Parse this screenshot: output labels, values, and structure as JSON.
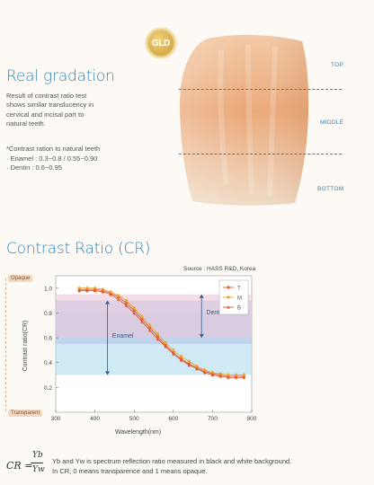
{
  "badge": {
    "label": "GLD"
  },
  "section1": {
    "title": "Real gradation",
    "description": [
      "Result of contrast ratio test",
      "shows similar translucency in",
      "cervical and incisal part to",
      "natural teeth."
    ],
    "note_heading": "*Contrast ration to natural teeth",
    "note_lines": [
      "· Enamel : 0.3~0.8 / 0.55~0.90",
      "· Dentin : 0.6~0.95"
    ],
    "levels": {
      "top": "TOP",
      "middle": "MIDDLE",
      "bottom": "BOTTOM"
    }
  },
  "section2": {
    "title": "Contrast Ratio (CR)",
    "source": "Source : HASS R&D, Korea",
    "opaque_label": "Opaque",
    "transparent_label": "Transparent",
    "dentin_label": "Dentin",
    "enamel_label": "Enamel"
  },
  "chart_data": {
    "type": "line",
    "xlabel": "Wavelength(nm)",
    "ylabel": "Contrast ratio(CR)",
    "xlim": [
      300,
      800
    ],
    "ylim": [
      0.0,
      1.1
    ],
    "x_ticks": [
      "300",
      "400",
      "500",
      "600",
      "700",
      "800"
    ],
    "y_ticks": [
      "0.2",
      "0.4",
      "0.6",
      "0.8",
      "1.0"
    ],
    "bands": [
      {
        "name": "Enamel",
        "range": [
          0.3,
          0.8
        ]
      },
      {
        "name": "Enamel",
        "range": [
          0.55,
          0.9
        ]
      },
      {
        "name": "Dentin",
        "range": [
          0.6,
          0.95
        ]
      }
    ],
    "x": [
      360,
      380,
      400,
      420,
      440,
      460,
      480,
      500,
      520,
      540,
      560,
      580,
      600,
      620,
      640,
      660,
      680,
      700,
      720,
      740,
      760,
      780
    ],
    "series": [
      {
        "name": "T",
        "color": "#d9623a",
        "values": [
          0.99,
          0.99,
          0.99,
          0.98,
          0.96,
          0.93,
          0.88,
          0.82,
          0.75,
          0.68,
          0.61,
          0.54,
          0.48,
          0.43,
          0.39,
          0.36,
          0.33,
          0.31,
          0.3,
          0.29,
          0.29,
          0.29
        ]
      },
      {
        "name": "M",
        "color": "#eba52f",
        "values": [
          1.0,
          1.0,
          1.0,
          0.99,
          0.97,
          0.94,
          0.9,
          0.84,
          0.77,
          0.7,
          0.63,
          0.56,
          0.5,
          0.45,
          0.41,
          0.37,
          0.34,
          0.32,
          0.31,
          0.3,
          0.3,
          0.3
        ]
      },
      {
        "name": "B",
        "color": "#e4562c",
        "values": [
          0.98,
          0.98,
          0.98,
          0.97,
          0.95,
          0.91,
          0.86,
          0.8,
          0.73,
          0.66,
          0.59,
          0.53,
          0.47,
          0.42,
          0.38,
          0.35,
          0.32,
          0.3,
          0.29,
          0.28,
          0.28,
          0.28
        ]
      }
    ]
  },
  "footer": {
    "formula_lhs": "CR =",
    "formula_num": "Yb",
    "formula_den": "Yw",
    "lines": [
      "Yb and Yw is spectrum reflection ratio measured in black and white background.",
      "In CR, 0 means transparence and 1 means opaque."
    ]
  }
}
